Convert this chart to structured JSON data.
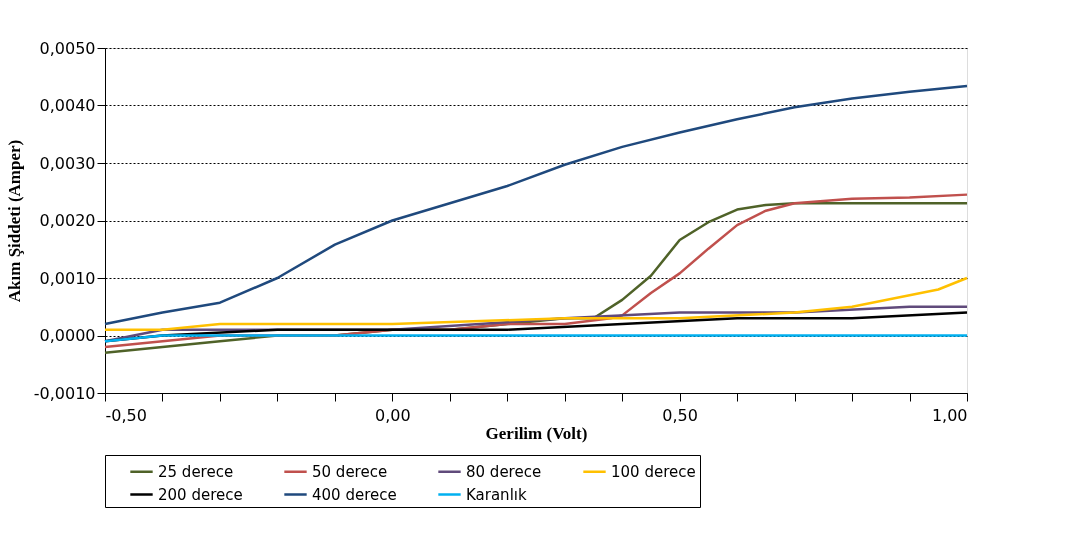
{
  "chart_data": {
    "type": "line",
    "xlabel": "Gerilim (Volt)",
    "ylabel": "Akım Şiddeti (Amper)",
    "xlim": [
      -0.5,
      1.0
    ],
    "xticks": [
      {
        "value": -0.5,
        "label": "-0,50"
      },
      {
        "value": -0.4,
        "label": null
      },
      {
        "value": -0.3,
        "label": null
      },
      {
        "value": -0.2,
        "label": null
      },
      {
        "value": -0.1,
        "label": null
      },
      {
        "value": 0.0,
        "label": "0,00"
      },
      {
        "value": 0.1,
        "label": null
      },
      {
        "value": 0.2,
        "label": null
      },
      {
        "value": 0.3,
        "label": null
      },
      {
        "value": 0.4,
        "label": null
      },
      {
        "value": 0.5,
        "label": "0,50"
      },
      {
        "value": 0.6,
        "label": null
      },
      {
        "value": 0.7,
        "label": null
      },
      {
        "value": 0.8,
        "label": null
      },
      {
        "value": 0.9,
        "label": null
      },
      {
        "value": 1.0,
        "label": "1,00"
      }
    ],
    "ylim": [
      -0.001,
      0.005
    ],
    "yticks": [
      {
        "value": -0.001,
        "label": "-0,0010"
      },
      {
        "value": 0.0,
        "label": "0,0000"
      },
      {
        "value": 0.001,
        "label": "0,0010"
      },
      {
        "value": 0.002,
        "label": "0,0020"
      },
      {
        "value": 0.003,
        "label": "0,0030"
      },
      {
        "value": 0.004,
        "label": "0,0040"
      },
      {
        "value": 0.005,
        "label": "0,0050"
      }
    ],
    "grid": "y",
    "legend": "bottom",
    "marker": "none",
    "line_style": "solid",
    "series": [
      {
        "name": "25 derece",
        "color": "#4f6228",
        "x": [
          -0.5,
          -0.4,
          -0.3,
          -0.2,
          -0.1,
          0.0,
          0.1,
          0.2,
          0.3,
          0.35,
          0.4,
          0.45,
          0.5,
          0.55,
          0.6,
          0.65,
          0.7,
          0.8,
          0.9,
          1.0
        ],
        "values": [
          -0.0003,
          -0.0002,
          -0.0001,
          0.0,
          0.0,
          0.0001,
          0.0001,
          0.0002,
          0.0003,
          0.0003,
          0.00062,
          0.00104,
          0.00166,
          0.00197,
          0.00219,
          0.00227,
          0.0023,
          0.0023,
          0.0023,
          0.0023
        ]
      },
      {
        "name": "50 derece",
        "color": "#c0504d",
        "x": [
          -0.5,
          -0.4,
          -0.3,
          -0.2,
          -0.1,
          0.0,
          0.1,
          0.2,
          0.3,
          0.38,
          0.4,
          0.45,
          0.5,
          0.55,
          0.6,
          0.65,
          0.7,
          0.8,
          0.9,
          1.0
        ],
        "values": [
          -0.0002,
          -0.0001,
          0.0,
          0.0,
          0.0,
          0.0001,
          0.0001,
          0.0002,
          0.0002,
          0.0003,
          0.00035,
          0.00074,
          0.00108,
          0.00151,
          0.00192,
          0.00217,
          0.0023,
          0.00238,
          0.0024,
          0.00245
        ]
      },
      {
        "name": "80 derece",
        "color": "#604a7b",
        "x": [
          -0.5,
          -0.4,
          -0.2,
          0.0,
          0.3,
          0.5,
          0.7,
          0.9,
          1.0
        ],
        "values": [
          -0.0001,
          0.0001,
          0.0001,
          0.0001,
          0.0003,
          0.0004,
          0.0004,
          0.0005,
          0.0005
        ]
      },
      {
        "name": "100 derece",
        "color": "#ffc000",
        "x": [
          -0.5,
          -0.4,
          -0.3,
          -0.2,
          0.0,
          0.3,
          0.5,
          0.7,
          0.8,
          0.9,
          0.95,
          1.0
        ],
        "values": [
          0.0001,
          0.0001,
          0.0002,
          0.0002,
          0.0002,
          0.0003,
          0.0003,
          0.0004,
          0.0005,
          0.0007,
          0.0008,
          0.001
        ]
      },
      {
        "name": "200 derece",
        "color": "#000000",
        "x": [
          -0.5,
          -0.4,
          -0.2,
          0.0,
          0.2,
          0.4,
          0.6,
          0.8,
          1.0
        ],
        "values": [
          -0.0001,
          0.0,
          0.0001,
          0.0001,
          0.0001,
          0.0002,
          0.0003,
          0.0003,
          0.0004
        ]
      },
      {
        "name": "400 derece",
        "color": "#1f497d",
        "x": [
          -0.5,
          -0.4,
          -0.3,
          -0.2,
          -0.1,
          0.0,
          0.1,
          0.2,
          0.3,
          0.4,
          0.5,
          0.6,
          0.7,
          0.8,
          0.9,
          1.0
        ],
        "values": [
          0.0002,
          0.0004,
          0.00057,
          0.001,
          0.00158,
          0.002,
          0.0023,
          0.0026,
          0.00297,
          0.00328,
          0.00353,
          0.00376,
          0.00397,
          0.00412,
          0.00424,
          0.00434
        ]
      },
      {
        "name": "Karanlık",
        "color": "#00b0f0",
        "x": [
          -0.5,
          -0.4,
          -0.3,
          0.0,
          0.5,
          1.0
        ],
        "values": [
          -0.0001,
          0.0,
          0.0,
          0.0,
          0.0,
          0.0
        ]
      }
    ]
  }
}
